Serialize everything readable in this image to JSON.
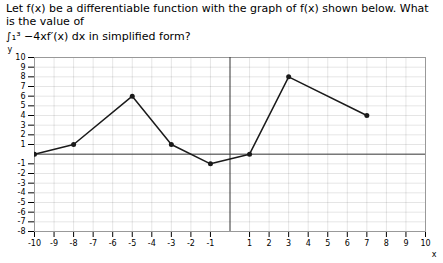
{
  "chart_data": {
    "type": "line",
    "title": "Let f(x) be a differentiable function with the graph of f(x) shown below. What is the value of",
    "subtitle": "∫₁³ −4xf′(x) dx in simplified form?",
    "x": [
      -10,
      -8,
      -5,
      -3,
      -1,
      1,
      3,
      7
    ],
    "series": [
      {
        "name": "f(x)",
        "color": "#1a1a1a",
        "marker": "circle",
        "values": [
          0,
          1,
          6,
          1,
          -1,
          0,
          8,
          4
        ]
      }
    ],
    "xlabel": "x",
    "ylabel": "y",
    "xlim": [
      -10,
      10
    ],
    "ylim": [
      -8,
      10
    ],
    "xticks": [
      -10,
      -9,
      -8,
      -7,
      -6,
      -5,
      -4,
      -3,
      -2,
      -1,
      1,
      2,
      3,
      4,
      5,
      6,
      7,
      8,
      9,
      10
    ],
    "yticks": [
      -8,
      -7,
      -6,
      -5,
      -4,
      -3,
      -2,
      -1,
      1,
      2,
      3,
      4,
      5,
      6,
      7,
      8,
      9,
      10
    ],
    "grid": true
  }
}
